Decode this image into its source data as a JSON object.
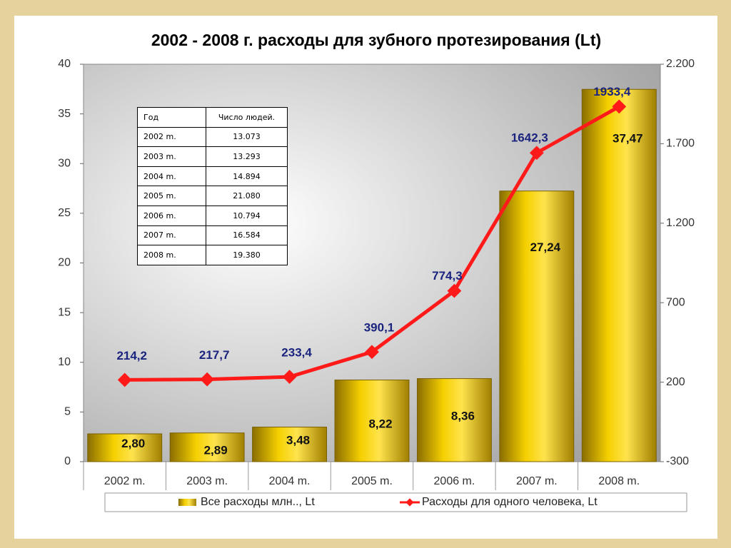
{
  "chart_data": {
    "type": "bar",
    "title": "2002 - 2008 г. расходы для зубного протезирования   (Lt)",
    "categories": [
      "2002 m.",
      "2003 m.",
      "2004 m.",
      "2005 m.",
      "2006 m.",
      "2007 m.",
      "2008 m."
    ],
    "series": [
      {
        "name": "Все расходы млн.., Lt",
        "type": "bar",
        "color": "#e0b800",
        "values": [
          2.8,
          2.89,
          3.48,
          8.22,
          8.36,
          27.24,
          37.47
        ],
        "value_labels": [
          "2,80",
          "2,89",
          "3,48",
          "8,22",
          "8,36",
          "27,24",
          "37,47"
        ]
      },
      {
        "name": "Расходы для одного человека, Lt",
        "type": "line",
        "axis": "y2",
        "color": "#ff1a1a",
        "values": [
          214.2,
          217.7,
          233.4,
          390.1,
          774.3,
          1642.3,
          1933.4
        ],
        "value_labels": [
          "214,2",
          "217,7",
          "233,4",
          "390,1",
          "774,3",
          "1642,3",
          "1933,4"
        ]
      }
    ],
    "ylim": [
      0,
      40
    ],
    "yticks": [
      0,
      5,
      10,
      15,
      20,
      25,
      30,
      35,
      40
    ],
    "y2lim": [
      -300,
      2200
    ],
    "y2ticks": [
      -300,
      200,
      700,
      {
        "value": 1200,
        "label": "1.200"
      },
      {
        "value": 1700,
        "label": "1.700"
      },
      {
        "value": 2200,
        "label": "2.200"
      }
    ],
    "legend": "bottom"
  },
  "table": {
    "header": [
      "Год",
      "Число людей."
    ],
    "rows": [
      [
        "2002 m.",
        "13.073"
      ],
      [
        "2003 m.",
        "13.293"
      ],
      [
        "2004 m.",
        "14.894"
      ],
      [
        "2005 m.",
        "21.080"
      ],
      [
        "2006 m.",
        "10.794"
      ],
      [
        "2007 m.",
        "16.584"
      ],
      [
        "2008 m.",
        "19.380"
      ]
    ]
  }
}
